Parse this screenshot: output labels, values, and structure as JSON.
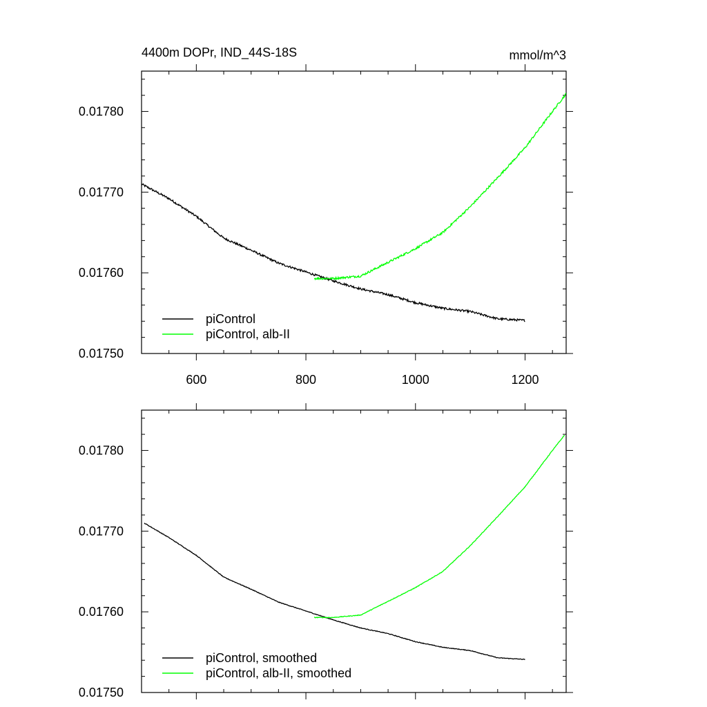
{
  "title_left": "4400m DOPr, IND_44S-18S",
  "title_right": "mmol/m^3",
  "colors": {
    "control": "#000000",
    "experiment": "#00ff00",
    "axis": "#000000"
  },
  "chart_data": [
    {
      "type": "line",
      "title": "4400m DOPr, IND_44S-18S",
      "units": "mmol/m^3",
      "xlim": [
        500,
        1275
      ],
      "ylim": [
        0.0175,
        0.01785
      ],
      "xticks": [
        600,
        800,
        1000,
        1200
      ],
      "xtick_labels": [
        "600",
        "800",
        "1000",
        "1200"
      ],
      "yticks": [
        0.0175,
        0.0176,
        0.0177,
        0.0178
      ],
      "ytick_labels": [
        "0.01750",
        "0.01760",
        "0.01770",
        "0.01780"
      ],
      "legend_position": "bottom-left",
      "noise": 1.3e-06,
      "series": [
        {
          "name": "piControl",
          "color": "#000000",
          "x": [
            500,
            550,
            600,
            650,
            700,
            750,
            800,
            850,
            900,
            950,
            1000,
            1050,
            1100,
            1150,
            1200
          ],
          "y": [
            0.01771,
            0.017692,
            0.01767,
            0.017643,
            0.017628,
            0.017612,
            0.017601,
            0.01759,
            0.01758,
            0.017573,
            0.017563,
            0.017556,
            0.017552,
            0.017543,
            0.017541
          ]
        },
        {
          "name": "piControl, alb-II",
          "color": "#00ff00",
          "x": [
            815,
            850,
            900,
            950,
            1000,
            1050,
            1100,
            1150,
            1200,
            1250,
            1275
          ],
          "y": [
            0.017593,
            0.017593,
            0.017596,
            0.017613,
            0.01763,
            0.01765,
            0.017682,
            0.017718,
            0.017755,
            0.0178,
            0.017822
          ]
        }
      ]
    },
    {
      "type": "line",
      "title": "",
      "units": "",
      "xlim": [
        500,
        1275
      ],
      "ylim": [
        0.0175,
        0.01785
      ],
      "xticks": [
        600,
        800,
        1000,
        1200
      ],
      "xtick_labels": [],
      "yticks": [
        0.0175,
        0.0176,
        0.0177,
        0.0178
      ],
      "ytick_labels": [
        "0.01750",
        "0.01760",
        "0.01770",
        "0.01780"
      ],
      "legend_position": "bottom-left",
      "noise": 4e-07,
      "series": [
        {
          "name": "piControl, smoothed",
          "color": "#000000",
          "x": [
            505,
            550,
            600,
            650,
            700,
            750,
            800,
            850,
            900,
            950,
            1000,
            1050,
            1100,
            1150,
            1200
          ],
          "y": [
            0.01771,
            0.017692,
            0.01767,
            0.017643,
            0.017628,
            0.017612,
            0.017601,
            0.01759,
            0.01758,
            0.017573,
            0.017563,
            0.017556,
            0.017552,
            0.017543,
            0.017541
          ]
        },
        {
          "name": "piControl, alb-II, smoothed",
          "color": "#00ff00",
          "x": [
            815,
            850,
            900,
            950,
            1000,
            1050,
            1100,
            1150,
            1200,
            1250,
            1272
          ],
          "y": [
            0.017593,
            0.017593,
            0.017596,
            0.017613,
            0.01763,
            0.01765,
            0.017682,
            0.017718,
            0.017755,
            0.0178,
            0.017819
          ]
        }
      ]
    }
  ]
}
